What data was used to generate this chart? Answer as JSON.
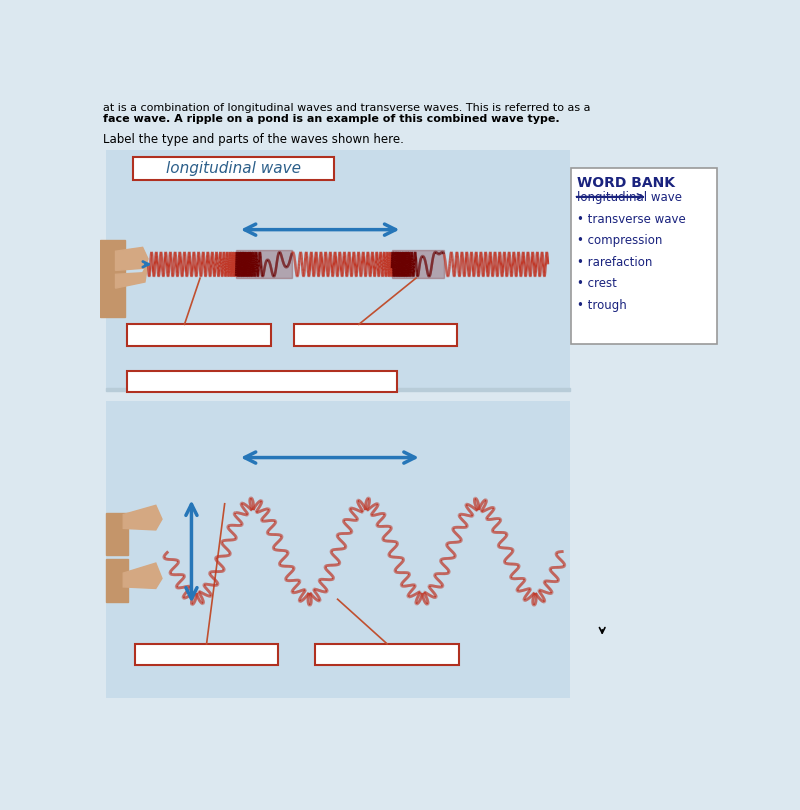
{
  "bg_color": "#dce8f0",
  "top_text1": "at is a combination of longitudinal waves and transverse waves. This is referred to as a",
  "top_text2": "face wave. A ripple on a pond is an example of this combined wave type.",
  "instruction": "Label the type and parts of the waves shown here.",
  "word_bank_title": "WORD BANK",
  "word_bank_items": [
    {
      "text": "longitudinal wave",
      "strikethrough": true
    },
    {
      "text": "transverse wave",
      "strikethrough": false
    },
    {
      "text": "compression",
      "strikethrough": false
    },
    {
      "text": "rarefaction",
      "strikethrough": false
    },
    {
      "text": "crest",
      "strikethrough": false
    },
    {
      "text": "trough",
      "strikethrough": false
    }
  ],
  "label_box1_text": "longitudinal wave",
  "panel_bg": "#c8dcea",
  "box_edge_color": "#b03020",
  "arrow_color": "#2676b8",
  "label_line_color": "#c05030",
  "spring_color": "#c03828",
  "compression_color": "#6B0000"
}
